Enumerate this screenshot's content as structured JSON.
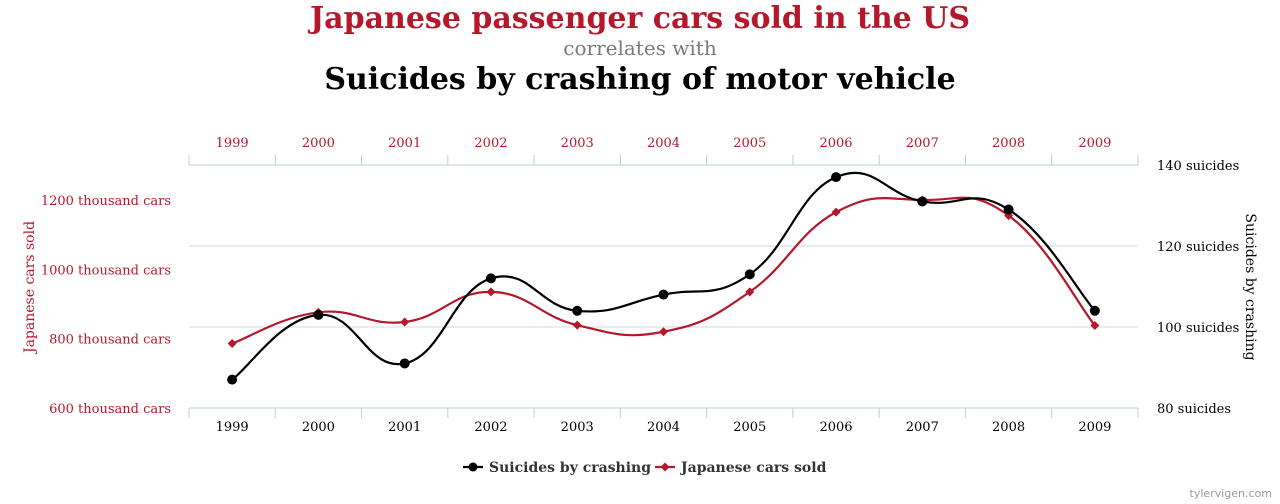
{
  "header": {
    "title": "Japanese passenger cars sold in the US",
    "connector": "correlates with",
    "subtitle": "Suicides by crashing of motor vehicle"
  },
  "credit": "tylervigen.com",
  "colors": {
    "cars": "#b5182b",
    "suicides": "#000000",
    "grid": "#c9dbe6",
    "axis": "#b9cfdc"
  },
  "chart_data": {
    "type": "line",
    "x": [
      "1999",
      "2000",
      "2001",
      "2002",
      "2003",
      "2004",
      "2005",
      "2006",
      "2007",
      "2008",
      "2009"
    ],
    "series": [
      {
        "name": "Suicides by crashing",
        "axis": "right",
        "marker": "circle",
        "values": [
          87,
          103,
          91,
          112,
          104,
          108,
          113,
          137,
          131,
          129,
          104
        ]
      },
      {
        "name": "Japanese cars sold",
        "axis": "left",
        "marker": "diamond",
        "values": [
          786,
          876,
          848,
          935,
          839,
          820,
          935,
          1165,
          1200,
          1155,
          838
        ]
      }
    ],
    "left_axis": {
      "label": "Japanese cars sold",
      "ticks": [
        600,
        800,
        1000,
        1200
      ],
      "tick_labels": [
        "600 thousand cars",
        "800 thousand cars",
        "1000 thousand cars",
        "1200 thousand cars"
      ]
    },
    "right_axis": {
      "label": "Suicides by crashing",
      "ticks": [
        80,
        100,
        120,
        140
      ],
      "tick_labels": [
        "80 suicides",
        "100 suicides",
        "120 suicides",
        "140 suicides"
      ],
      "range": [
        80,
        140
      ]
    },
    "legend_position": "bottom-center",
    "grid": true
  }
}
